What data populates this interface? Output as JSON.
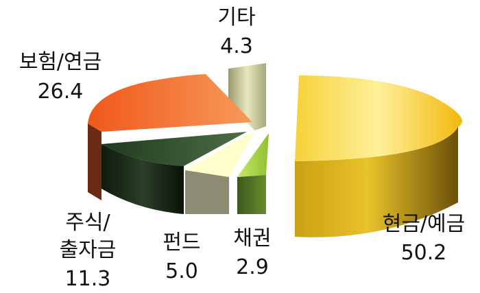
{
  "chart_data": {
    "type": "pie",
    "style": "3d-exploded",
    "title": "",
    "slices": [
      {
        "name": "현금/예금",
        "value": 50.2,
        "label": "50.2",
        "color": "#f5c21a"
      },
      {
        "name": "채권",
        "value": 2.9,
        "label": "2.9",
        "color": "#a8d04a"
      },
      {
        "name": "펀드",
        "value": 5.0,
        "label": "5.0",
        "color": "#ffffcc"
      },
      {
        "name": "주식/출자금",
        "name_lines": [
          "주식/",
          "출자금"
        ],
        "value": 11.3,
        "label": "11.3",
        "color": "#2d4a2a"
      },
      {
        "name": "보험/연금",
        "value": 26.4,
        "label": "26.4",
        "color": "#f26b21"
      },
      {
        "name": "기타",
        "value": 4.3,
        "label": "4.3",
        "color": "#c8c89a"
      }
    ],
    "legend": "none"
  }
}
